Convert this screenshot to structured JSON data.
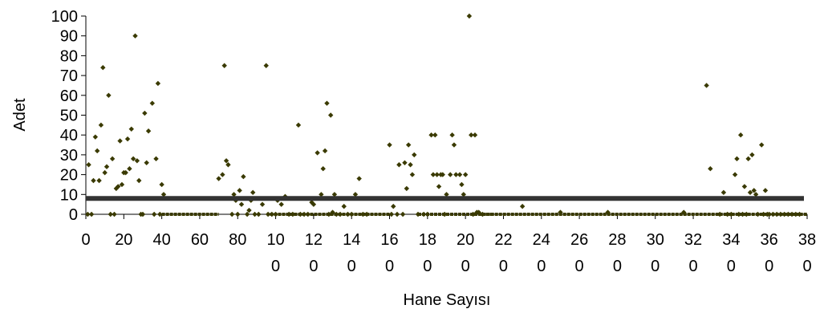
{
  "chart_data": {
    "type": "scatter",
    "xlabel": "Hane Sayısı",
    "ylabel": "Adet",
    "xlim": [
      0,
      380
    ],
    "ylim": [
      0,
      100
    ],
    "x_ticks": [
      "0",
      "20",
      "40",
      "60",
      "80",
      "100",
      "120",
      "140",
      "160",
      "180",
      "200",
      "220",
      "240",
      "260",
      "280",
      "300",
      "320",
      "340",
      "360",
      "380"
    ],
    "y_ticks": [
      "0",
      "10",
      "20",
      "30",
      "40",
      "50",
      "60",
      "70",
      "80",
      "90",
      "100"
    ],
    "grid": false,
    "legend": "none",
    "marker_color": "#3a3a00",
    "reference_line": {
      "y": 8,
      "color": "#333333"
    },
    "points": [
      [
        1,
        0
      ],
      [
        1.5,
        25
      ],
      [
        3,
        0
      ],
      [
        4,
        17
      ],
      [
        5,
        39
      ],
      [
        6,
        32
      ],
      [
        7,
        17
      ],
      [
        8,
        45
      ],
      [
        9,
        74
      ],
      [
        10,
        21
      ],
      [
        11,
        24
      ],
      [
        12,
        60
      ],
      [
        13,
        0
      ],
      [
        14,
        28
      ],
      [
        15,
        0
      ],
      [
        16,
        13
      ],
      [
        17,
        14
      ],
      [
        18,
        37
      ],
      [
        19,
        15
      ],
      [
        20,
        21
      ],
      [
        21,
        21
      ],
      [
        22,
        38
      ],
      [
        23,
        23
      ],
      [
        24,
        43
      ],
      [
        25,
        28
      ],
      [
        26,
        90
      ],
      [
        27,
        27
      ],
      [
        28,
        17
      ],
      [
        29,
        0
      ],
      [
        30,
        0
      ],
      [
        31,
        51
      ],
      [
        32,
        26
      ],
      [
        33,
        42
      ],
      [
        35,
        56
      ],
      [
        36,
        0
      ],
      [
        37,
        28
      ],
      [
        38,
        66
      ],
      [
        39,
        0
      ],
      [
        40,
        15
      ],
      [
        41,
        10
      ],
      [
        70,
        18
      ],
      [
        72,
        20
      ],
      [
        73,
        75
      ],
      [
        74,
        27
      ],
      [
        75,
        25
      ],
      [
        77,
        0
      ],
      [
        78,
        10
      ],
      [
        79,
        7
      ],
      [
        80,
        0
      ],
      [
        81,
        12
      ],
      [
        82,
        5
      ],
      [
        83,
        19
      ],
      [
        85,
        0
      ],
      [
        86,
        2
      ],
      [
        87,
        7
      ],
      [
        88,
        11
      ],
      [
        89,
        0
      ],
      [
        91,
        0
      ],
      [
        93,
        5
      ],
      [
        95,
        75
      ],
      [
        96,
        0
      ],
      [
        98,
        0
      ],
      [
        100,
        0
      ],
      [
        101,
        7
      ],
      [
        103,
        5
      ],
      [
        105,
        9
      ],
      [
        107,
        0
      ],
      [
        109,
        0
      ],
      [
        112,
        45
      ],
      [
        113,
        0
      ],
      [
        115,
        0
      ],
      [
        117,
        0
      ],
      [
        119,
        6
      ],
      [
        120,
        5
      ],
      [
        122,
        31
      ],
      [
        124,
        10
      ],
      [
        125,
        23
      ],
      [
        126,
        32
      ],
      [
        127,
        56
      ],
      [
        128,
        0
      ],
      [
        129,
        50
      ],
      [
        130,
        1
      ],
      [
        131,
        10
      ],
      [
        132,
        0
      ],
      [
        134,
        0
      ],
      [
        136,
        4
      ],
      [
        138,
        0
      ],
      [
        140,
        0
      ],
      [
        142,
        10
      ],
      [
        144,
        18
      ],
      [
        146,
        0
      ],
      [
        148,
        0
      ],
      [
        160,
        35
      ],
      [
        161,
        0
      ],
      [
        162,
        4
      ],
      [
        164,
        0
      ],
      [
        165,
        25
      ],
      [
        167,
        0
      ],
      [
        168,
        26
      ],
      [
        169,
        13
      ],
      [
        170,
        35
      ],
      [
        171,
        25
      ],
      [
        172,
        20
      ],
      [
        173,
        30
      ],
      [
        175,
        0
      ],
      [
        178,
        0
      ],
      [
        180,
        0
      ],
      [
        182,
        40
      ],
      [
        183,
        20
      ],
      [
        184,
        40
      ],
      [
        185,
        20
      ],
      [
        186,
        14
      ],
      [
        187,
        20
      ],
      [
        188,
        20
      ],
      [
        189,
        0
      ],
      [
        190,
        10
      ],
      [
        192,
        20
      ],
      [
        193,
        40
      ],
      [
        194,
        35
      ],
      [
        195,
        20
      ],
      [
        197,
        20
      ],
      [
        198,
        15
      ],
      [
        199,
        10
      ],
      [
        200,
        20
      ],
      [
        202,
        100
      ],
      [
        203,
        40
      ],
      [
        204,
        0
      ],
      [
        205,
        40
      ],
      [
        206,
        1
      ],
      [
        207,
        1
      ],
      [
        209,
        0
      ],
      [
        230,
        4
      ],
      [
        250,
        1
      ],
      [
        275,
        1
      ],
      [
        315,
        1
      ],
      [
        327,
        65
      ],
      [
        329,
        23
      ],
      [
        334,
        0
      ],
      [
        336,
        11
      ],
      [
        338,
        0
      ],
      [
        340,
        0
      ],
      [
        342,
        20
      ],
      [
        343,
        28
      ],
      [
        344,
        0
      ],
      [
        345,
        40
      ],
      [
        346,
        0
      ],
      [
        347,
        14
      ],
      [
        348,
        0
      ],
      [
        349,
        28
      ],
      [
        350,
        11
      ],
      [
        351,
        30
      ],
      [
        352,
        12
      ],
      [
        353,
        10
      ],
      [
        354,
        0
      ],
      [
        356,
        35
      ],
      [
        357,
        0
      ],
      [
        358,
        12
      ],
      [
        359,
        0
      ],
      [
        360,
        0
      ],
      [
        362,
        0
      ],
      [
        364,
        0
      ],
      [
        366,
        0
      ],
      [
        368,
        0
      ],
      [
        370,
        0
      ],
      [
        372,
        0
      ],
      [
        374,
        0
      ],
      [
        376,
        0
      ]
    ]
  }
}
